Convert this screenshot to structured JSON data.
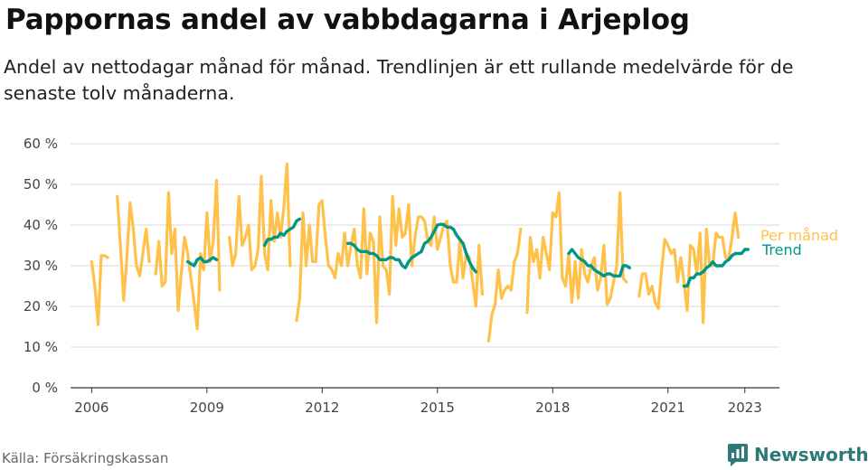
{
  "header": {
    "title": "Pappornas andel av vabbdagarna i Arjeplog",
    "subtitle": "Andel av nettodagar månad för månad. Trendlinjen är ett rullande medelvärde för de senaste tolv månaderna."
  },
  "footer": {
    "source": "Källa: Försäkringskassan",
    "brand": "Newsworthy"
  },
  "colors": {
    "monthly": "#FFC149",
    "trend": "#009688",
    "brand": "#2c7a77",
    "grid": "#d9d9d9"
  },
  "chart_data": {
    "type": "line",
    "x_start": "2006-01",
    "x_step": "1 month",
    "xticks": [
      "2006",
      "2009",
      "2012",
      "2015",
      "2018",
      "2021",
      "2023"
    ],
    "yticks": [
      "0 %",
      "10 %",
      "20 %",
      "30 %",
      "40 %",
      "50 %",
      "60 %"
    ],
    "ylim": [
      0,
      60
    ],
    "grid": true,
    "legend_placement": "right-end",
    "series": [
      {
        "name": "Per månad",
        "values": [
          31,
          25,
          15.5,
          32.5,
          32.5,
          32,
          null,
          null,
          47,
          35,
          21.5,
          32,
          45.5,
          39,
          30,
          27.5,
          33,
          39,
          31,
          null,
          28,
          36,
          25,
          26,
          48,
          33,
          39,
          19,
          28,
          37,
          33,
          27,
          21,
          14.5,
          33,
          29,
          43,
          31,
          36,
          51,
          24,
          null,
          null,
          37,
          30,
          33,
          47,
          35,
          37,
          40,
          29,
          30,
          34,
          52,
          33,
          29,
          46,
          36,
          43,
          37,
          44,
          55,
          30,
          null,
          16.5,
          22,
          43,
          30,
          40,
          31,
          31,
          45,
          46,
          37,
          30,
          29,
          27,
          33,
          30,
          38,
          30,
          35,
          39,
          30,
          27,
          44,
          28,
          38,
          36,
          16,
          42,
          30,
          29,
          23,
          47,
          35,
          44,
          37,
          38,
          45,
          30,
          37,
          42,
          42,
          41,
          36,
          35,
          42,
          34,
          37,
          40,
          41,
          30,
          26,
          26,
          36,
          27,
          33,
          32,
          26,
          20,
          35,
          23,
          null,
          11.5,
          18,
          20.5,
          29,
          22,
          24,
          25,
          24,
          31,
          33,
          39,
          null,
          18.5,
          37,
          31,
          34,
          27,
          37,
          33,
          29,
          43,
          42,
          48,
          27,
          25,
          33,
          21,
          31,
          22,
          34,
          28,
          26,
          30,
          32,
          24,
          27,
          35,
          20.5,
          22,
          26,
          30,
          48,
          27,
          26,
          null,
          null,
          null,
          22.5,
          28,
          28,
          23,
          25,
          21,
          19.5,
          29,
          36.5,
          35,
          33,
          34,
          26,
          32,
          26,
          19,
          35,
          34,
          28,
          38,
          16,
          39,
          30,
          30,
          38,
          37,
          37,
          32,
          32,
          37,
          43,
          37
        ],
        "start": "2006-01"
      },
      {
        "name": "Trend",
        "segments": [
          {
            "start": "2008-07",
            "values": [
              31,
              30.5,
              30,
              31.5,
              32,
              31,
              31,
              31.5,
              32,
              31.5
            ]
          },
          {
            "start": "2010-07",
            "values": [
              35,
              36.5,
              36.5,
              37,
              37,
              38,
              37.5,
              38.5,
              39,
              39.5,
              41,
              41.5
            ]
          },
          {
            "start": "2012-09",
            "values": [
              35.5,
              35.5,
              35,
              34,
              33.5,
              33.5,
              33.5,
              33,
              33,
              32.5,
              31.5,
              31.5,
              31.5,
              32,
              32,
              31.5,
              31.5,
              30,
              29.5,
              31,
              32,
              32.5,
              33,
              33.5,
              35.5,
              36,
              37,
              38.5,
              40,
              40.2,
              40.1,
              39.5,
              39.5,
              39,
              37.5,
              36.5,
              35.5,
              33,
              31,
              29.5,
              28.5
            ]
          },
          {
            "start": "2018-06",
            "values": [
              33,
              34,
              33,
              32,
              31.5,
              31,
              30,
              30,
              29,
              28.5,
              28,
              27.5,
              28,
              28,
              27.5,
              27.5,
              27.5,
              30,
              30,
              29.5
            ]
          },
          {
            "start": "2021-06",
            "values": [
              25,
              25,
              27,
              27,
              28,
              28,
              28.5,
              29.5,
              30,
              31,
              30,
              30,
              30,
              31,
              31.5,
              32.5,
              33,
              33,
              33,
              34,
              34
            ]
          }
        ]
      }
    ]
  }
}
